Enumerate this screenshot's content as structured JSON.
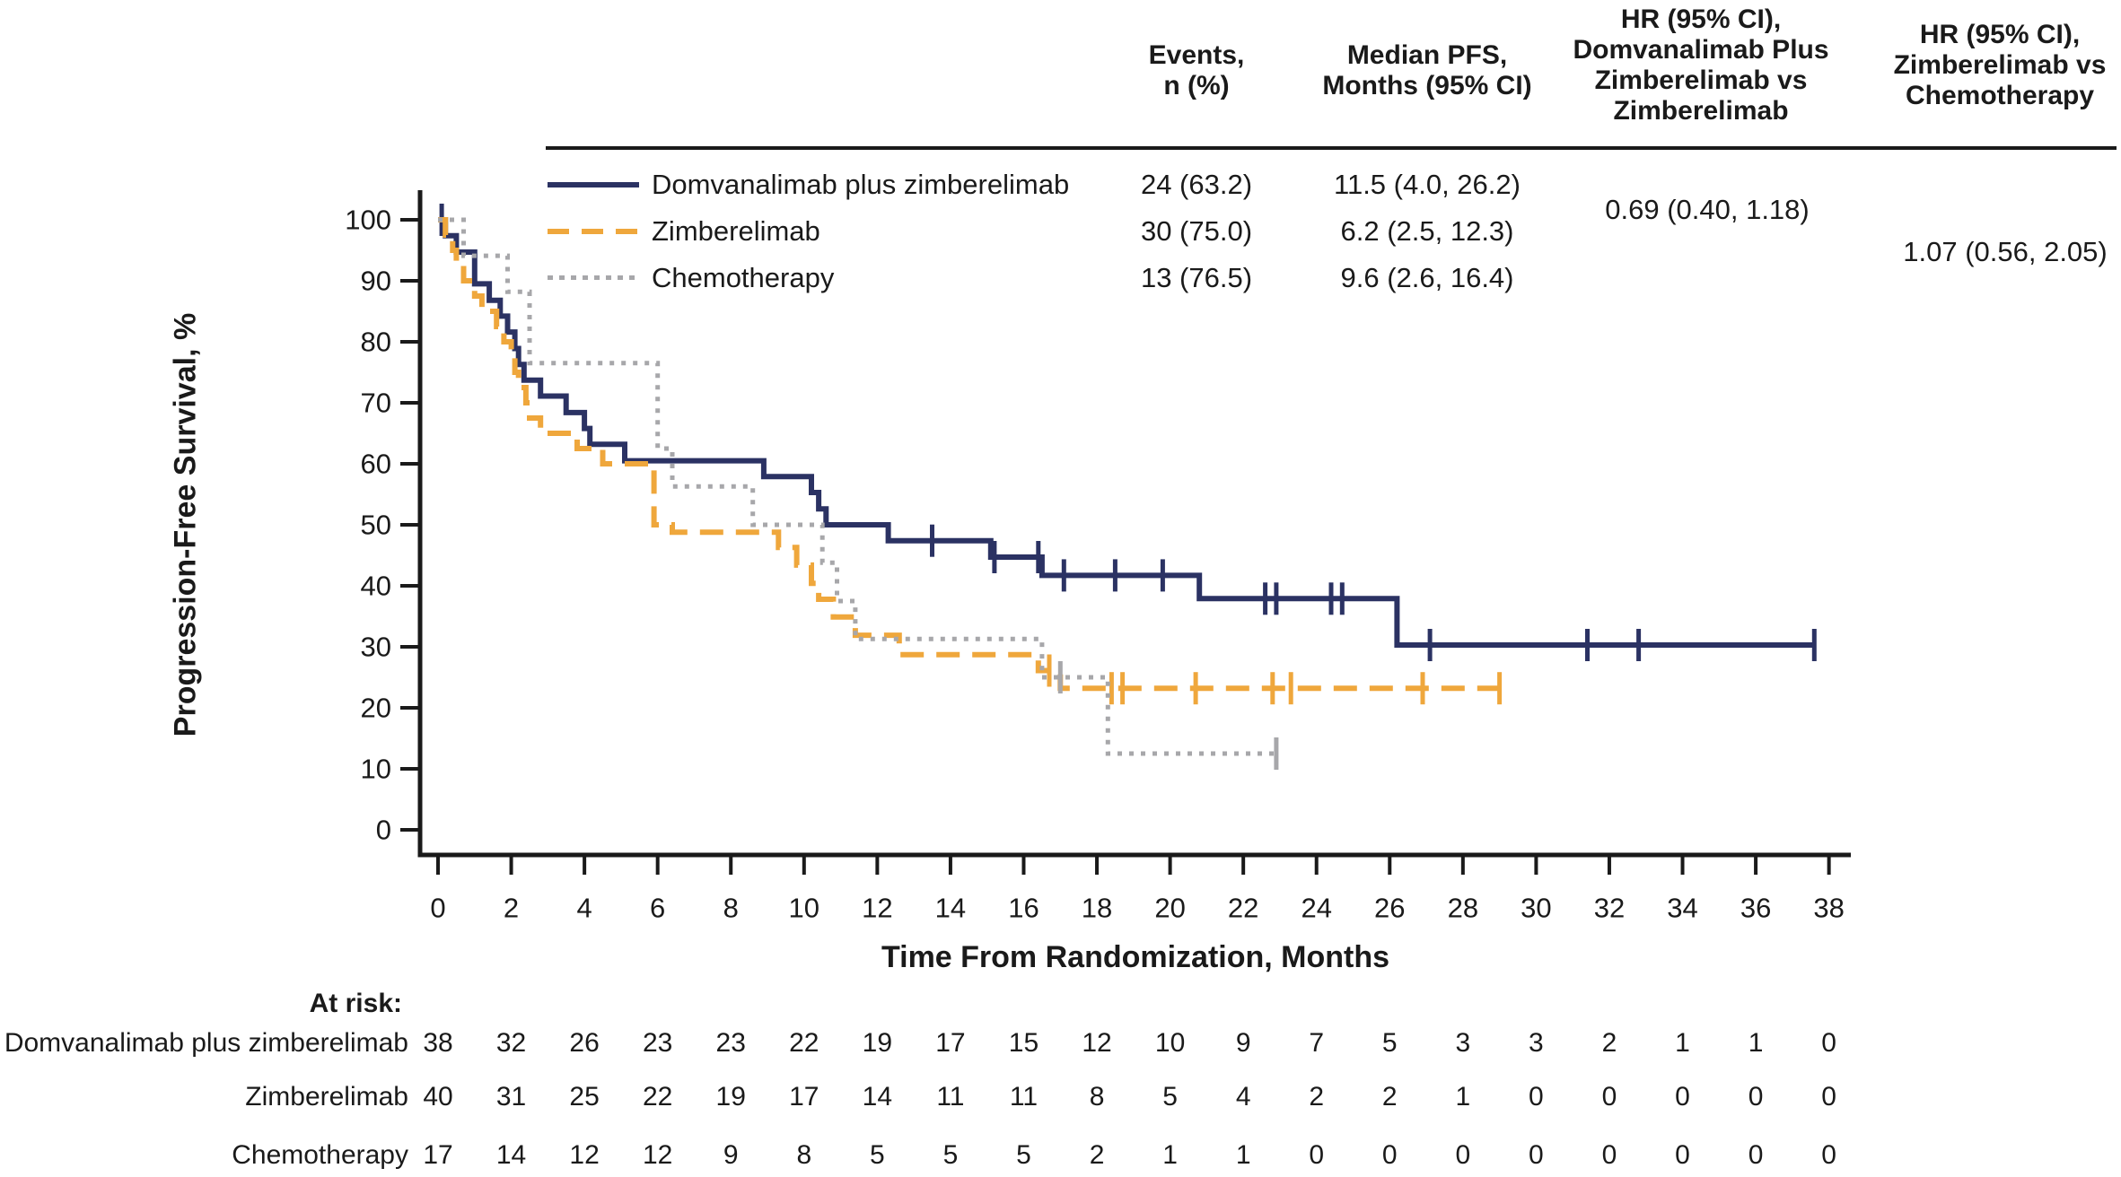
{
  "header": {
    "columns": [
      {
        "id": "events",
        "lines": [
          "Events,",
          "n (%)"
        ]
      },
      {
        "id": "median",
        "lines": [
          "Median PFS,",
          "Months (95% CI)"
        ]
      },
      {
        "id": "hr1",
        "lines": [
          "HR (95% CI),",
          "Domvanalimab Plus",
          "Zimberelimab vs",
          "Zimberelimab"
        ]
      },
      {
        "id": "hr2",
        "lines": [
          "HR (95% CI),",
          "Zimberelimab vs",
          "Chemotherapy"
        ]
      }
    ],
    "hr1_value": "0.69 (0.40, 1.18)",
    "hr2_value": "1.07 (0.56, 2.05)"
  },
  "legend": {
    "rows": [
      {
        "label": "Domvanalimab plus zimberelimab",
        "events": "24 (63.2)",
        "median": "11.5 (4.0, 26.2)"
      },
      {
        "label": "Zimberelimab",
        "events": "30 (75.0)",
        "median": "6.2 (2.5, 12.3)"
      },
      {
        "label": "Chemotherapy",
        "events": "13 (76.5)",
        "median": "9.6 (2.6, 16.4)"
      }
    ]
  },
  "chart_data": {
    "type": "line",
    "subtype": "kaplan-meier-step",
    "xlabel": "Time From Randomization, Months",
    "ylabel": "Progression-Free Survival, %",
    "xlim": [
      0,
      38
    ],
    "ylim": [
      0,
      100
    ],
    "x_ticks": [
      0,
      2,
      4,
      6,
      8,
      10,
      12,
      14,
      16,
      18,
      20,
      22,
      24,
      26,
      28,
      30,
      32,
      34,
      36,
      38
    ],
    "y_ticks": [
      0,
      10,
      20,
      30,
      40,
      50,
      60,
      70,
      80,
      90,
      100
    ],
    "axis_color": "#1a1a1a",
    "series": [
      {
        "name": "Domvanalimab plus zimberelimab",
        "color": "#2B3263",
        "style": "solid",
        "steps": [
          [
            0,
            100
          ],
          [
            0.2,
            97.4
          ],
          [
            0.5,
            94.7
          ],
          [
            1.0,
            89.5
          ],
          [
            1.4,
            86.8
          ],
          [
            1.7,
            84.2
          ],
          [
            1.9,
            81.6
          ],
          [
            2.1,
            78.9
          ],
          [
            2.2,
            76.3
          ],
          [
            2.35,
            73.7
          ],
          [
            2.8,
            71.1
          ],
          [
            3.5,
            68.4
          ],
          [
            4.0,
            65.8
          ],
          [
            4.15,
            63.2
          ],
          [
            5.1,
            60.5
          ],
          [
            8.9,
            57.9
          ],
          [
            10.2,
            55.3
          ],
          [
            10.4,
            52.6
          ],
          [
            10.6,
            50.0
          ],
          [
            12.3,
            47.4
          ],
          [
            15.1,
            44.7
          ],
          [
            16.5,
            41.7
          ],
          [
            20.8,
            37.9
          ],
          [
            26.2,
            30.3
          ]
        ],
        "end": 37.6,
        "censors": [
          [
            0.1,
            100
          ],
          [
            13.5,
            47.4
          ],
          [
            15.2,
            44.7
          ],
          [
            16.4,
            44.7
          ],
          [
            17.1,
            41.7
          ],
          [
            18.5,
            41.7
          ],
          [
            19.8,
            41.7
          ],
          [
            22.6,
            37.9
          ],
          [
            22.9,
            37.9
          ],
          [
            24.4,
            37.9
          ],
          [
            24.7,
            37.9
          ],
          [
            27.1,
            30.3
          ],
          [
            31.4,
            30.3
          ],
          [
            32.8,
            30.3
          ],
          [
            37.6,
            30.3
          ]
        ]
      },
      {
        "name": "Zimberelimab",
        "color": "#EFA73C",
        "style": "dashed",
        "steps": [
          [
            0,
            100
          ],
          [
            0.2,
            97.5
          ],
          [
            0.4,
            95.0
          ],
          [
            0.5,
            92.5
          ],
          [
            0.7,
            90.0
          ],
          [
            1.0,
            87.5
          ],
          [
            1.2,
            85.0
          ],
          [
            1.6,
            82.5
          ],
          [
            1.8,
            80.0
          ],
          [
            2.0,
            77.5
          ],
          [
            2.1,
            75.0
          ],
          [
            2.2,
            72.5
          ],
          [
            2.4,
            70.0
          ],
          [
            2.5,
            67.5
          ],
          [
            2.8,
            65.0
          ],
          [
            3.8,
            62.5
          ],
          [
            4.5,
            60.0
          ],
          [
            5.9,
            50.0
          ],
          [
            6.4,
            48.8
          ],
          [
            9.3,
            46.3
          ],
          [
            9.8,
            43.4
          ],
          [
            10.2,
            40.4
          ],
          [
            10.4,
            37.8
          ],
          [
            10.8,
            34.9
          ],
          [
            11.4,
            31.9
          ],
          [
            12.6,
            28.7
          ],
          [
            16.4,
            26.1
          ],
          [
            17.0,
            23.2
          ]
        ],
        "end": 29.0,
        "censors": [
          [
            16.7,
            26.1
          ],
          [
            18.4,
            23.2
          ],
          [
            18.7,
            23.2
          ],
          [
            20.7,
            23.2
          ],
          [
            22.8,
            23.2
          ],
          [
            23.3,
            23.2
          ],
          [
            26.9,
            23.2
          ],
          [
            29.0,
            23.2
          ]
        ]
      },
      {
        "name": "Chemotherapy",
        "color": "#A7A7AA",
        "style": "dotted",
        "steps": [
          [
            0,
            100
          ],
          [
            0.7,
            94.1
          ],
          [
            1.9,
            88.2
          ],
          [
            2.5,
            76.5
          ],
          [
            6.0,
            62.5
          ],
          [
            6.4,
            56.3
          ],
          [
            8.6,
            50.0
          ],
          [
            10.5,
            43.8
          ],
          [
            10.9,
            37.5
          ],
          [
            11.4,
            31.3
          ],
          [
            16.5,
            25.0
          ],
          [
            18.3,
            12.5
          ]
        ],
        "end": 22.9,
        "censors": [
          [
            17.0,
            25.0
          ],
          [
            22.9,
            12.5
          ]
        ]
      }
    ]
  },
  "at_risk": {
    "label": "At risk:",
    "times": [
      0,
      2,
      4,
      6,
      8,
      10,
      12,
      14,
      16,
      18,
      20,
      22,
      24,
      26,
      28,
      30,
      32,
      34,
      36,
      38
    ],
    "rows": [
      {
        "label": "Domvanalimab plus zimberelimab",
        "counts": [
          38,
          32,
          26,
          23,
          23,
          22,
          19,
          17,
          15,
          12,
          10,
          9,
          7,
          5,
          3,
          3,
          2,
          1,
          1,
          0
        ]
      },
      {
        "label": "Zimberelimab",
        "counts": [
          40,
          31,
          25,
          22,
          19,
          17,
          14,
          11,
          11,
          8,
          5,
          4,
          2,
          2,
          1,
          0,
          0,
          0,
          0,
          0
        ]
      },
      {
        "label": "Chemotherapy",
        "counts": [
          17,
          14,
          12,
          12,
          9,
          8,
          5,
          5,
          5,
          2,
          1,
          1,
          0,
          0,
          0,
          0,
          0,
          0,
          0,
          0
        ]
      }
    ]
  }
}
